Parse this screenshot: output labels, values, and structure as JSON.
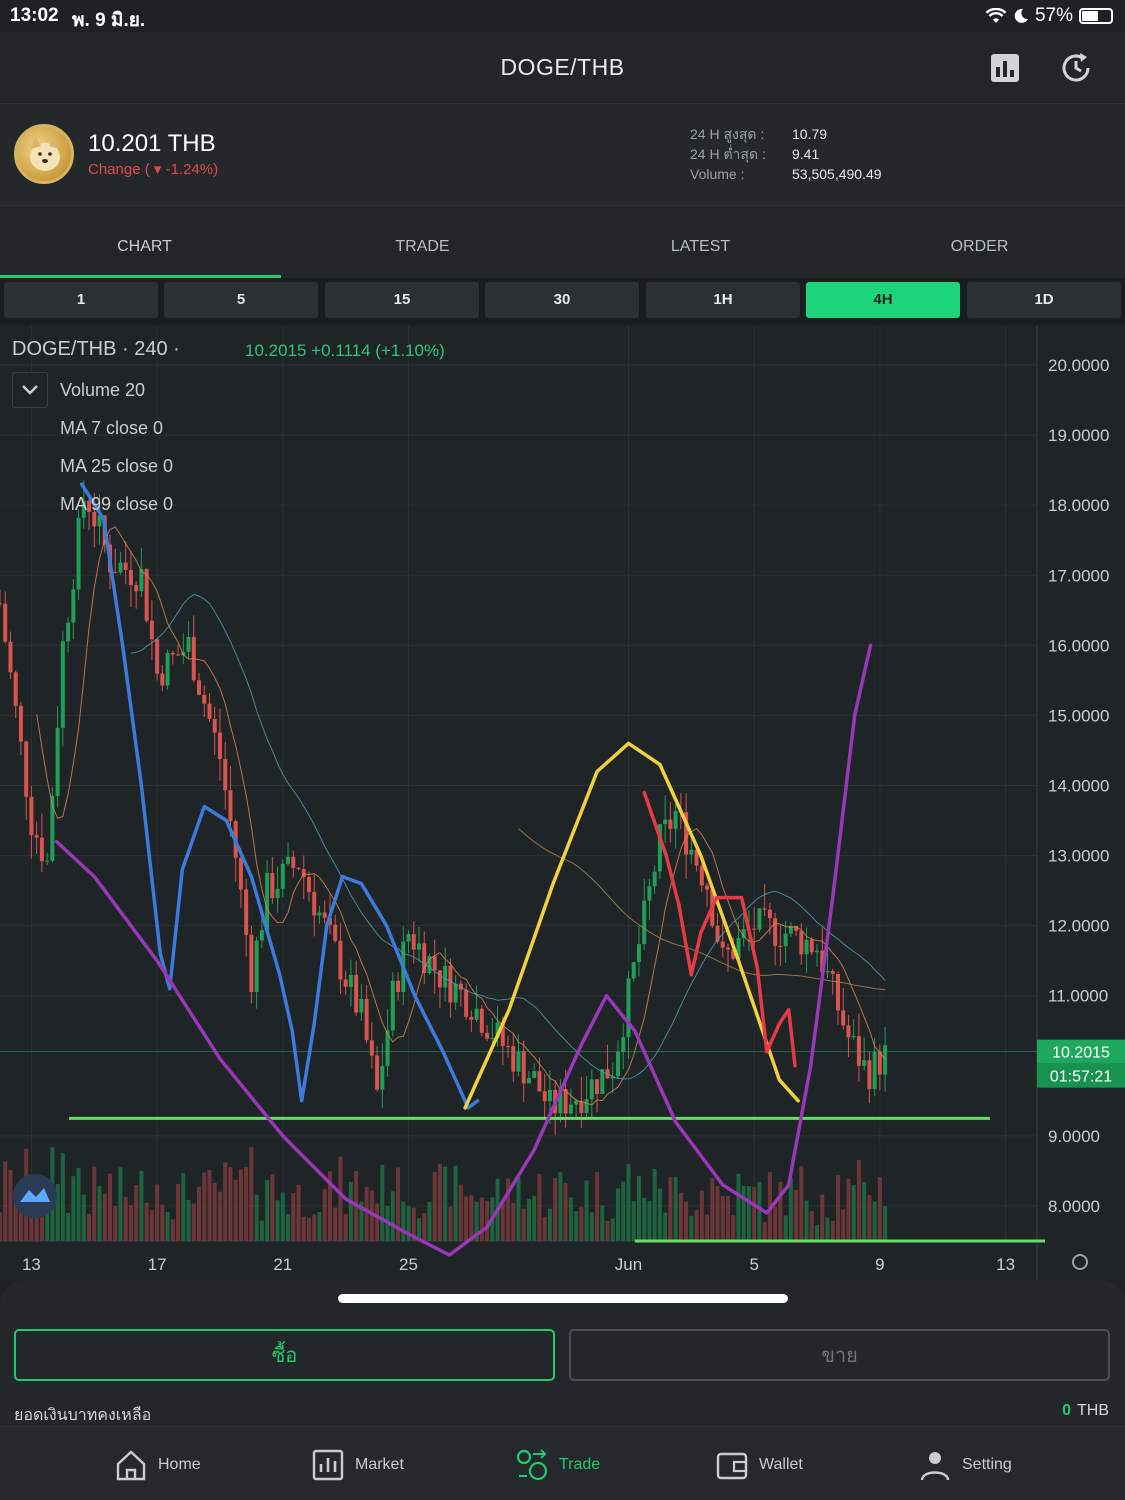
{
  "status_bar": {
    "time": "13:02",
    "date": "พ. 9 มิ.ย.",
    "battery": "57%",
    "battery_level": 0.57
  },
  "header": {
    "title": "DOGE/THB",
    "icons": [
      "chart-bar-icon",
      "refresh-clock-icon"
    ]
  },
  "ticker": {
    "price": "10.201 THB",
    "change": "Change ( ▾ -1.24%)",
    "high_label": "24 H สูงสุด :",
    "high_value": "10.79",
    "low_label": "24 H ต่ำสุด :",
    "low_value": "9.41",
    "volume_label": "Volume :",
    "volume_value": "53,505,490.49"
  },
  "tabs": [
    "CHART",
    "TRADE",
    "LATEST",
    "ORDER"
  ],
  "active_tab": "CHART",
  "intervals": [
    "1",
    "5",
    "15",
    "30",
    "1H",
    "4H",
    "1D"
  ],
  "active_interval": "4H",
  "chart": {
    "symbol_line": "DOGE/THB · 240 ·",
    "last_line": "10.2015  +0.1114 (+1.10%)",
    "indicators": [
      "Volume 20",
      "MA 7 close 0",
      "MA 25 close 0",
      "MA 99 close 0"
    ],
    "price_tag": "10.2015",
    "countdown": "01:57:21"
  },
  "chart_data": {
    "type": "candlestick",
    "ylim": [
      7.5,
      20.2
    ],
    "y_ticks": [
      "20.0000",
      "19.0000",
      "18.0000",
      "17.0000",
      "16.0000",
      "15.0000",
      "14.0000",
      "13.0000",
      "12.0000",
      "11.0000",
      "9.0000",
      "8.0000"
    ],
    "x_ticks": [
      "13",
      "17",
      "21",
      "25",
      "Jun",
      "5",
      "9",
      "13"
    ],
    "x_domain": [
      "May 12",
      "Jun 14"
    ],
    "close_path": [
      [
        "May 12",
        16.6
      ],
      [
        "May 13",
        13.5
      ],
      [
        "May 13.5",
        12.9
      ],
      [
        "May 14",
        16.0
      ],
      [
        "May 14.7",
        18.2
      ],
      [
        "May 15.5",
        17.2
      ],
      [
        "May 16.5",
        17.0
      ],
      [
        "May 17",
        15.6
      ],
      [
        "May 18",
        16.0
      ],
      [
        "May 19",
        14.4
      ],
      [
        "May 19.5",
        13.0
      ],
      [
        "May 20",
        11.3
      ],
      [
        "May 20.5",
        12.5
      ],
      [
        "May 21.5",
        12.9
      ],
      [
        "May 22.5",
        11.8
      ],
      [
        "May 23.5",
        10.7
      ],
      [
        "May 24",
        9.6
      ],
      [
        "May 24.5",
        11.0
      ],
      [
        "May 25",
        11.9
      ],
      [
        "May 26",
        11.3
      ],
      [
        "May 27",
        10.9
      ],
      [
        "May 28",
        10.3
      ],
      [
        "May 29",
        9.8
      ],
      [
        "May 29.5",
        9.4
      ],
      [
        "May 30.5",
        9.6
      ],
      [
        "May 31.5",
        10.0
      ],
      [
        "Jun 1",
        11.0
      ],
      [
        "Jun 2",
        13.2
      ],
      [
        "Jun 2.5",
        13.6
      ],
      [
        "Jun 3.5",
        12.6
      ],
      [
        "Jun 4",
        11.5
      ],
      [
        "Jun 5",
        12.0
      ],
      [
        "Jun 6",
        11.9
      ],
      [
        "Jun 7",
        11.7
      ],
      [
        "Jun 8",
        10.4
      ],
      [
        "Jun 8.6",
        9.9
      ],
      [
        "Jun 9.3",
        10.2015
      ]
    ],
    "ma_colors": {
      "ma7": "#e08a4e",
      "ma25": "#4fa3b5",
      "ma99": "#b08a47"
    },
    "up_color": "#1f9e57",
    "down_color": "#d9534f",
    "annotations": [
      {
        "kind": "support-line",
        "color": "#66dd66",
        "price": 9.25
      },
      {
        "kind": "support-line",
        "color": "#66dd66",
        "price": 7.5
      },
      {
        "kind": "freehand",
        "color": "#3a7bdc"
      },
      {
        "kind": "freehand",
        "color": "#f0d03c"
      },
      {
        "kind": "freehand",
        "color": "#e63a45"
      },
      {
        "kind": "freehand",
        "color": "#9a36b8"
      }
    ]
  },
  "bottom_sheet": {
    "buy_label": "ซื้อ",
    "sell_label": "ขาย",
    "balance_label": "ยอดเงินบาทคงเหลือ",
    "balance_value": "0",
    "balance_unit": "THB"
  },
  "tab_bar": [
    {
      "label": "Home",
      "icon": "home-icon"
    },
    {
      "label": "Market",
      "icon": "market-icon"
    },
    {
      "label": "Trade",
      "icon": "trade-icon"
    },
    {
      "label": "Wallet",
      "icon": "wallet-icon"
    },
    {
      "label": "Setting",
      "icon": "user-icon"
    }
  ],
  "active_tab_bar": "Trade",
  "colors": {
    "accent": "#1ecb6e",
    "negative": "#e04b4b",
    "background": "#1e2224"
  }
}
